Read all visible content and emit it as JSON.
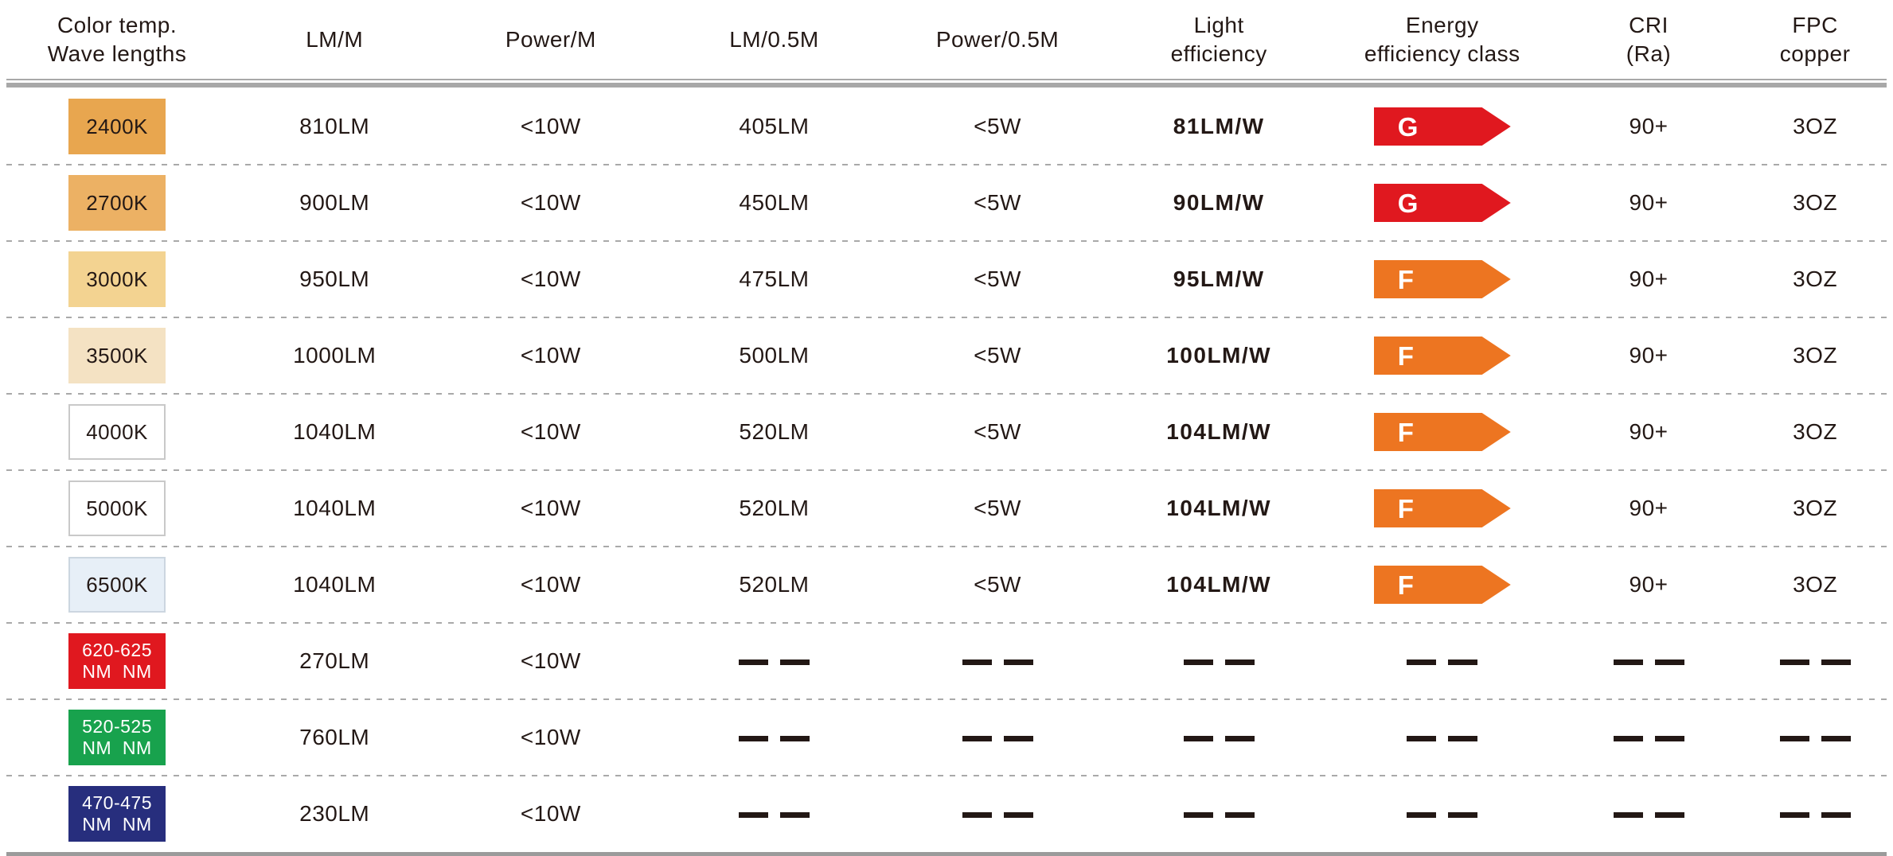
{
  "chart_data": {
    "type": "table",
    "columns": [
      "Color temp.\nWave lengths",
      "LM/M",
      "Power/M",
      "LM/0.5M",
      "Power/0.5M",
      "Light\nefficiency",
      "Energy\nefficiency class",
      "CRI\n(Ra)",
      "FPC\ncopper"
    ],
    "rows": [
      [
        "2400K",
        "810LM",
        "<10W",
        "405LM",
        "<5W",
        "81LM/W",
        "G",
        "90+",
        "3OZ"
      ],
      [
        "2700K",
        "900LM",
        "<10W",
        "450LM",
        "<5W",
        "90LM/W",
        "G",
        "90+",
        "3OZ"
      ],
      [
        "3000K",
        "950LM",
        "<10W",
        "475LM",
        "<5W",
        "95LM/W",
        "F",
        "90+",
        "3OZ"
      ],
      [
        "3500K",
        "1000LM",
        "<10W",
        "500LM",
        "<5W",
        "100LM/W",
        "F",
        "90+",
        "3OZ"
      ],
      [
        "4000K",
        "1040LM",
        "<10W",
        "520LM",
        "<5W",
        "104LM/W",
        "F",
        "90+",
        "3OZ"
      ],
      [
        "5000K",
        "1040LM",
        "<10W",
        "520LM",
        "<5W",
        "104LM/W",
        "F",
        "90+",
        "3OZ"
      ],
      [
        "6500K",
        "1040LM",
        "<10W",
        "520LM",
        "<5W",
        "104LM/W",
        "F",
        "90+",
        "3OZ"
      ],
      [
        "620-625 NM NM",
        "270LM",
        "<10W",
        null,
        null,
        null,
        null,
        null,
        null
      ],
      [
        "520-525 NM NM",
        "760LM",
        "<10W",
        null,
        null,
        null,
        null,
        null,
        null
      ],
      [
        "470-475 NM NM",
        "230LM",
        "<10W",
        null,
        null,
        null,
        null,
        null,
        null
      ]
    ]
  },
  "table": {
    "columns": [
      {
        "key": "swatch",
        "label": "Color temp.\nWave lengths"
      },
      {
        "key": "lm_m",
        "label": "LM/M"
      },
      {
        "key": "power_m",
        "label": "Power/M"
      },
      {
        "key": "lm_05m",
        "label": "LM/0.5M"
      },
      {
        "key": "power_05m",
        "label": "Power/0.5M"
      },
      {
        "key": "efficiency",
        "label": "Light\nefficiency"
      },
      {
        "key": "energy_class",
        "label": "Energy\nefficiency class"
      },
      {
        "key": "cri",
        "label": "CRI\n(Ra)"
      },
      {
        "key": "fpc",
        "label": "FPC\ncopper"
      }
    ],
    "rows": [
      {
        "swatch": {
          "label": "2400K",
          "bg": "#e8a64f",
          "text": "#231815",
          "border": null
        },
        "lm_m": "810LM",
        "power_m": "<10W",
        "lm_05m": "405LM",
        "power_05m": "<5W",
        "efficiency": "81LM/W",
        "energy_class": {
          "grade": "G",
          "color": "#e0181f"
        },
        "cri": "90+",
        "fpc": "3OZ"
      },
      {
        "swatch": {
          "label": "2700K",
          "bg": "#ecb164",
          "text": "#231815",
          "border": null
        },
        "lm_m": "900LM",
        "power_m": "<10W",
        "lm_05m": "450LM",
        "power_05m": "<5W",
        "efficiency": "90LM/W",
        "energy_class": {
          "grade": "G",
          "color": "#e0181f"
        },
        "cri": "90+",
        "fpc": "3OZ"
      },
      {
        "swatch": {
          "label": "3000K",
          "bg": "#f3d391",
          "text": "#231815",
          "border": null
        },
        "lm_m": "950LM",
        "power_m": "<10W",
        "lm_05m": "475LM",
        "power_05m": "<5W",
        "efficiency": "95LM/W",
        "energy_class": {
          "grade": "F",
          "color": "#ed7521"
        },
        "cri": "90+",
        "fpc": "3OZ"
      },
      {
        "swatch": {
          "label": "3500K",
          "bg": "#f4e2c3",
          "text": "#231815",
          "border": null
        },
        "lm_m": "1000LM",
        "power_m": "<10W",
        "lm_05m": "500LM",
        "power_05m": "<5W",
        "efficiency": "100LM/W",
        "energy_class": {
          "grade": "F",
          "color": "#ed7521"
        },
        "cri": "90+",
        "fpc": "3OZ"
      },
      {
        "swatch": {
          "label": "4000K",
          "bg": "#ffffff",
          "text": "#231815",
          "border": "#c9c9c9"
        },
        "lm_m": "1040LM",
        "power_m": "<10W",
        "lm_05m": "520LM",
        "power_05m": "<5W",
        "efficiency": "104LM/W",
        "energy_class": {
          "grade": "F",
          "color": "#ed7521"
        },
        "cri": "90+",
        "fpc": "3OZ"
      },
      {
        "swatch": {
          "label": "5000K",
          "bg": "#ffffff",
          "text": "#231815",
          "border": "#c9c9c9"
        },
        "lm_m": "1040LM",
        "power_m": "<10W",
        "lm_05m": "520LM",
        "power_05m": "<5W",
        "efficiency": "104LM/W",
        "energy_class": {
          "grade": "F",
          "color": "#ed7521"
        },
        "cri": "90+",
        "fpc": "3OZ"
      },
      {
        "swatch": {
          "label": "6500K",
          "bg": "#e7eff7",
          "text": "#231815",
          "border": "#ccd6e0"
        },
        "lm_m": "1040LM",
        "power_m": "<10W",
        "lm_05m": "520LM",
        "power_05m": "<5W",
        "efficiency": "104LM/W",
        "energy_class": {
          "grade": "F",
          "color": "#ed7521"
        },
        "cri": "90+",
        "fpc": "3OZ"
      },
      {
        "swatch": {
          "label": "620-625\nNM  NM",
          "bg": "#e0181f",
          "text": "#ffffff",
          "border": null
        },
        "lm_m": "270LM",
        "power_m": "<10W",
        "lm_05m": null,
        "power_05m": null,
        "efficiency": null,
        "energy_class": null,
        "cri": null,
        "fpc": null
      },
      {
        "swatch": {
          "label": "520-525\nNM  NM",
          "bg": "#18a24d",
          "text": "#ffffff",
          "border": null
        },
        "lm_m": "760LM",
        "power_m": "<10W",
        "lm_05m": null,
        "power_05m": null,
        "efficiency": null,
        "energy_class": null,
        "cri": null,
        "fpc": null
      },
      {
        "swatch": {
          "label": "470-475\nNM  NM",
          "bg": "#272e7d",
          "text": "#ffffff",
          "border": null
        },
        "lm_m": "230LM",
        "power_m": "<10W",
        "lm_05m": null,
        "power_05m": null,
        "efficiency": null,
        "energy_class": null,
        "cri": null,
        "fpc": null
      }
    ],
    "colors": {
      "text": "#231815",
      "separator": "#a9a9a9",
      "header_rule": "#a8a8a8",
      "bottom_rule": "#9b9b9b",
      "class_g": "#e0181f",
      "class_f": "#ed7521"
    }
  }
}
